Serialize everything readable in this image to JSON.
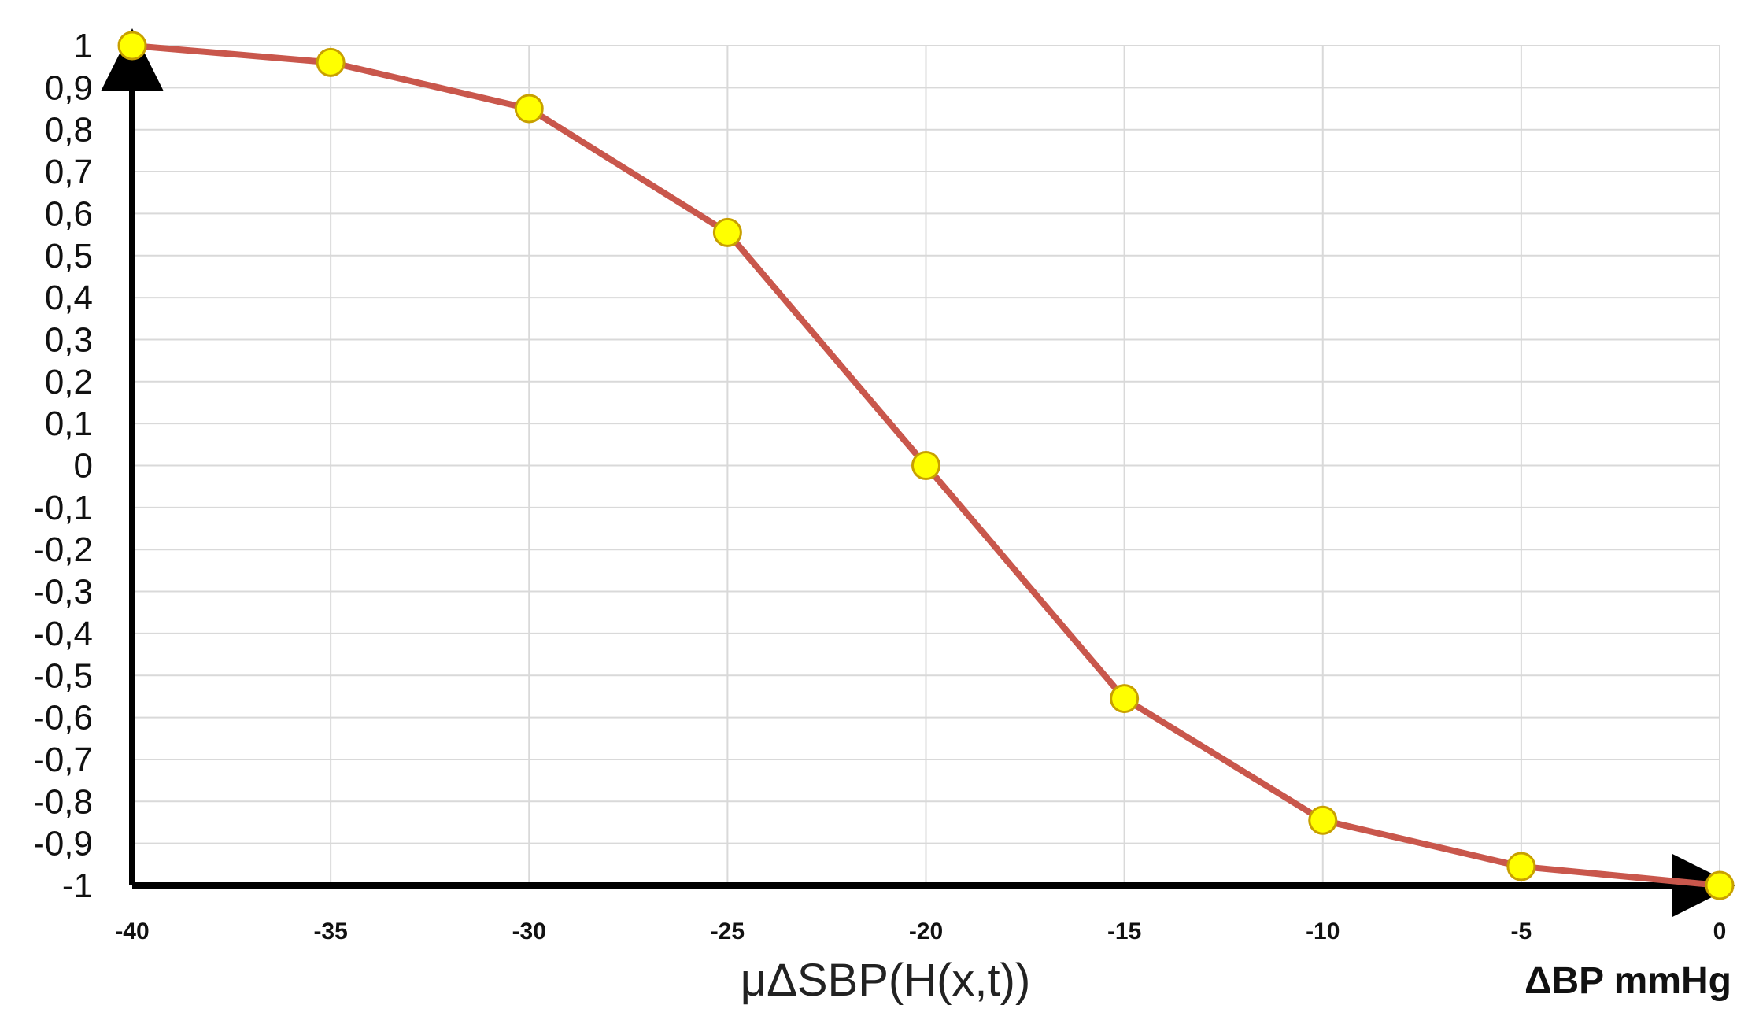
{
  "chart_data": {
    "type": "line",
    "x": [
      -40,
      -35,
      -30,
      -25,
      -20,
      -15,
      -10,
      -5,
      0
    ],
    "series": [
      {
        "values": [
          1,
          0.96,
          0.85,
          0.555,
          0,
          -0.555,
          -0.845,
          -0.955,
          -1
        ]
      }
    ],
    "xlabel": "μΔSBP(H(x,t))",
    "x_unit_label": "ΔBP mmHg",
    "ylabel": "",
    "xlim": [
      -40,
      0
    ],
    "ylim": [
      -1,
      1
    ],
    "x_ticks": [
      "-40",
      "-35",
      "-30",
      "-25",
      "-20",
      "-15",
      "-10",
      "-5",
      "0"
    ],
    "y_ticks": [
      "1",
      "0,9",
      "0,8",
      "0,7",
      "0,6",
      "0,5",
      "0,4",
      "0,3",
      "0,2",
      "0,1",
      "0",
      "-0,1",
      "-0,2",
      "-0,3",
      "-0,4",
      "-0,5",
      "-0,6",
      "-0,7",
      "-0,8",
      "-0,9",
      "-1"
    ],
    "grid": true,
    "legend": "none",
    "colors": {
      "line": "#c9574c",
      "marker_fill": "#ffff00",
      "marker_stroke": "#c8a000",
      "axis": "#000000",
      "grid": "#d9d9d9"
    }
  }
}
